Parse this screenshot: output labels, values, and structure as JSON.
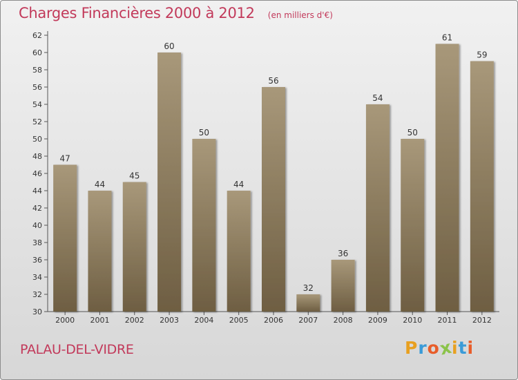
{
  "header": {
    "title": "Charges Financières 2000 à 2012",
    "subtitle": "(en milliers d'€)"
  },
  "footer": {
    "commune": "PALAU-DEL-VIDRE",
    "logo_letters": [
      "P",
      "r",
      "o",
      "x",
      "i",
      "t",
      "i"
    ],
    "logo_colors": [
      "#e8a020",
      "#3a9bd8",
      "#e85d2a",
      "#8bc34a",
      "#e8a020",
      "#3a9bd8",
      "#e85d2a"
    ]
  },
  "colors": {
    "bar_top": "#a8987a",
    "bar_bottom": "#6e5e42",
    "title": "#c2395a"
  },
  "chart_data": {
    "type": "bar",
    "categories": [
      "2000",
      "2001",
      "2002",
      "2003",
      "2004",
      "2005",
      "2006",
      "2007",
      "2008",
      "2009",
      "2010",
      "2011",
      "2012"
    ],
    "values": [
      47,
      44,
      45,
      60,
      50,
      44,
      56,
      32,
      36,
      54,
      50,
      61,
      59
    ],
    "value_labels": [
      "47",
      "44",
      "45",
      "60",
      "50",
      "44",
      "56",
      "32",
      "36",
      "54",
      "50",
      "61",
      "59"
    ],
    "ylim": [
      30,
      62
    ],
    "yticks": [
      "30",
      "32",
      "34",
      "36",
      "38",
      "40",
      "42",
      "44",
      "46",
      "48",
      "50",
      "52",
      "54",
      "56",
      "58",
      "60",
      "62"
    ],
    "grid": false,
    "title": "Charges Financières 2000 à 2012",
    "xlabel": "",
    "ylabel": ""
  }
}
